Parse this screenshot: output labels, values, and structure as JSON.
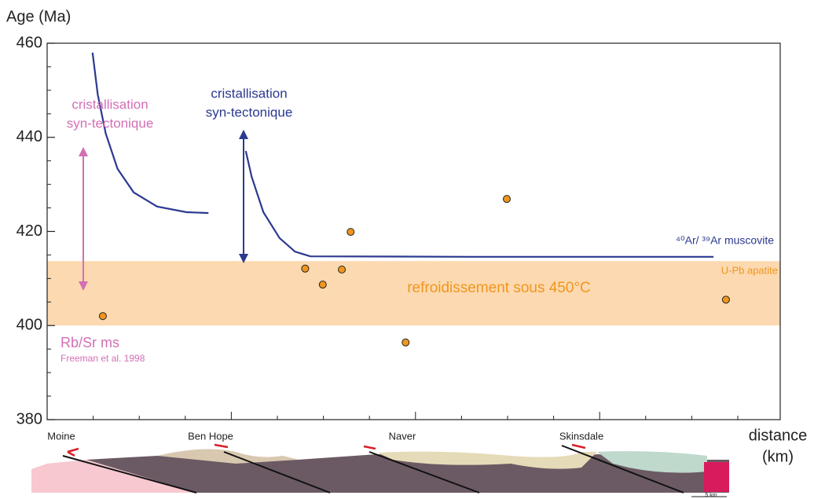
{
  "chart_data": {
    "type": "scatter",
    "y_label": "Age (Ma)",
    "x_label_lines": [
      "distance",
      "(km)"
    ],
    "ylim": [
      380,
      460
    ],
    "yticks": [
      380,
      400,
      420,
      440,
      460
    ],
    "xlim": [
      0,
      100
    ],
    "band": {
      "ylim": [
        400,
        413.7
      ],
      "color": "#fcd9b0",
      "label": "refroidissement sous 450°C",
      "label_color": "#f0961e"
    },
    "series": [
      {
        "color": "#f0961e",
        "x": [
          7.6,
          35.2,
          37.6,
          40.2,
          41.4,
          48.9,
          62.7,
          92.6
        ],
        "values": [
          402.0,
          412.1,
          408.7,
          411.9,
          419.9,
          396.4,
          426.9,
          405.5
        ]
      }
    ],
    "curves": [
      {
        "color": "#2b3990",
        "x": [
          6.2,
          6.9,
          8.0,
          9.6,
          11.8,
          15.0,
          19.0,
          22.0
        ],
        "y": [
          458.0,
          449.1,
          440.8,
          433.3,
          428.3,
          425.3,
          424.1,
          423.9
        ]
      },
      {
        "color": "#2b3990",
        "x": [
          27.1,
          27.9,
          29.5,
          31.7,
          33.8,
          35.9,
          57.9,
          90.9
        ],
        "y": [
          437.1,
          431.6,
          424.1,
          418.6,
          415.7,
          414.7,
          414.6,
          414.6
        ]
      }
    ],
    "annotations": {
      "pink_title": [
        "cristallisation",
        "syn-tectonique"
      ],
      "blue_title": [
        "cristallisation",
        "syn-tectonique"
      ],
      "ar_label": "⁴⁰Ar/ ³⁹Ar muscovite",
      "upb_label": "U-Pb apatite",
      "rbsr_label": "Rb/Sr ms",
      "rbsr_ref": "Freeman et al. 1998"
    },
    "section_labels": [
      "Moine",
      "Ben Hope",
      "Naver",
      "Skinsdale"
    ],
    "scale_label": "5 km"
  }
}
